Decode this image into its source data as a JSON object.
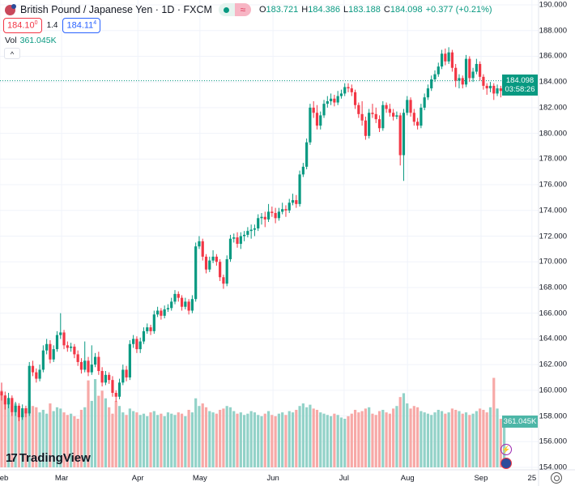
{
  "header": {
    "title": "British Pound / Japanese Yen · 1D · FXCM",
    "o_label": "O",
    "o": "183.721",
    "h_label": "H",
    "h": "184.386",
    "l_label": "L",
    "l": "183.188",
    "c_label": "C",
    "c": "184.098",
    "change": "+0.377 (+0.21%)",
    "market_status_icon": "green-dot-icon",
    "replay_icon": "approx-icon",
    "replay_symbol": "≈"
  },
  "trade": {
    "sell": "184.10",
    "sell_sup": "0",
    "spread": "1.4",
    "buy": "184.11",
    "buy_sup": "4"
  },
  "volume": {
    "label": "Vol",
    "value": "361.045K"
  },
  "collapse_symbol": "^",
  "price_tag": {
    "price": "184.098",
    "countdown": "03:58:26"
  },
  "volume_tag": "361.045K",
  "logo": {
    "mark": "17",
    "text": "TradingView"
  },
  "colors": {
    "up": "#089981",
    "down": "#f23645",
    "vol_up": "#92d2c8",
    "vol_down": "#f7a9a7",
    "grid": "#f0f3fa"
  },
  "chart_data": {
    "type": "candlestick",
    "interval": "1D",
    "ylim": [
      154,
      190
    ],
    "y_ticks": [
      "190.000",
      "188.000",
      "186.000",
      "184.000",
      "182.000",
      "180.000",
      "178.000",
      "176.000",
      "174.000",
      "172.000",
      "170.000",
      "168.000",
      "166.000",
      "164.000",
      "162.000",
      "160.000",
      "158.000",
      "156.000",
      "154.000"
    ],
    "x_ticks": [
      {
        "label": "eb",
        "index": -0.5
      },
      {
        "label": "Mar",
        "index": 17.3
      },
      {
        "label": "Apr",
        "index": 39.3
      },
      {
        "label": "May",
        "index": 57.2
      },
      {
        "label": "Jun",
        "index": 78.3
      },
      {
        "label": "Jul",
        "index": 98.8
      },
      {
        "label": "Aug",
        "index": 117.1
      },
      {
        "label": "Sep",
        "index": 138.3
      },
      {
        "label": "25",
        "index": 153
      }
    ],
    "grid": true,
    "last_price": 184.098,
    "ohlc": [
      [
        159.9,
        160.6,
        159.2,
        159.6
      ],
      [
        159.6,
        159.9,
        158.5,
        158.9
      ],
      [
        158.9,
        159.8,
        158.6,
        159.4
      ],
      [
        159.4,
        159.6,
        158.0,
        158.3
      ],
      [
        158.3,
        159.1,
        158.0,
        158.8
      ],
      [
        158.8,
        159.0,
        157.6,
        157.9
      ],
      [
        157.9,
        158.9,
        157.7,
        158.6
      ],
      [
        158.6,
        158.8,
        157.9,
        158.2
      ],
      [
        158.2,
        162.2,
        158.0,
        161.9
      ],
      [
        161.9,
        162.3,
        161.1,
        161.4
      ],
      [
        161.4,
        161.7,
        160.6,
        160.9
      ],
      [
        160.9,
        162.0,
        160.7,
        161.6
      ],
      [
        161.6,
        163.5,
        161.4,
        163.1
      ],
      [
        163.1,
        164.0,
        162.8,
        163.6
      ],
      [
        163.6,
        163.9,
        162.1,
        162.4
      ],
      [
        162.4,
        163.5,
        162.2,
        163.2
      ],
      [
        163.2,
        164.6,
        163.0,
        164.3
      ],
      [
        164.3,
        166.0,
        164.0,
        164.5
      ],
      [
        164.5,
        164.7,
        163.2,
        163.5
      ],
      [
        163.5,
        163.8,
        163.0,
        163.3
      ],
      [
        163.3,
        163.7,
        163.0,
        163.4
      ],
      [
        163.4,
        163.6,
        162.5,
        162.8
      ],
      [
        162.8,
        163.1,
        161.9,
        162.2
      ],
      [
        162.2,
        162.5,
        161.3,
        161.6
      ],
      [
        161.6,
        163.8,
        161.4,
        162.3
      ],
      [
        162.3,
        162.6,
        161.1,
        161.4
      ],
      [
        161.4,
        163.5,
        161.2,
        162.0
      ],
      [
        162.0,
        162.9,
        161.8,
        162.6
      ],
      [
        162.6,
        163.0,
        161.2,
        161.5
      ],
      [
        161.5,
        161.8,
        160.3,
        160.6
      ],
      [
        160.6,
        161.5,
        160.4,
        161.2
      ],
      [
        161.2,
        161.4,
        160.5,
        160.8
      ],
      [
        160.8,
        161.1,
        159.5,
        159.8
      ],
      [
        159.8,
        160.0,
        159.1,
        159.5
      ],
      [
        159.5,
        160.9,
        159.3,
        160.6
      ],
      [
        160.6,
        162.0,
        160.4,
        161.6
      ],
      [
        161.6,
        161.9,
        160.7,
        161.0
      ],
      [
        161.0,
        163.9,
        160.8,
        163.6
      ],
      [
        163.6,
        164.3,
        163.3,
        164.0
      ],
      [
        164.0,
        164.2,
        162.9,
        163.2
      ],
      [
        163.2,
        164.1,
        162.9,
        163.8
      ],
      [
        163.8,
        164.9,
        163.6,
        164.6
      ],
      [
        164.6,
        165.2,
        164.4,
        164.9
      ],
      [
        164.9,
        165.1,
        164.3,
        164.6
      ],
      [
        164.6,
        166.2,
        164.4,
        165.9
      ],
      [
        165.9,
        166.5,
        165.7,
        166.2
      ],
      [
        166.2,
        166.4,
        165.5,
        165.8
      ],
      [
        165.8,
        166.6,
        165.6,
        166.3
      ],
      [
        166.3,
        166.7,
        166.1,
        166.4
      ],
      [
        166.4,
        167.2,
        166.2,
        166.9
      ],
      [
        166.9,
        167.8,
        166.7,
        167.5
      ],
      [
        167.5,
        167.7,
        166.9,
        167.2
      ],
      [
        167.2,
        167.4,
        166.2,
        166.5
      ],
      [
        166.5,
        167.2,
        166.3,
        166.9
      ],
      [
        166.9,
        167.1,
        165.9,
        166.2
      ],
      [
        166.2,
        167.4,
        166.0,
        167.1
      ],
      [
        167.1,
        171.5,
        166.9,
        171.2
      ],
      [
        171.2,
        172.0,
        171.0,
        171.6
      ],
      [
        171.6,
        171.8,
        170.1,
        170.4
      ],
      [
        170.4,
        170.6,
        169.1,
        169.4
      ],
      [
        169.4,
        170.4,
        169.2,
        170.1
      ],
      [
        170.1,
        170.9,
        169.9,
        170.4
      ],
      [
        170.4,
        170.6,
        169.7,
        170.0
      ],
      [
        170.0,
        170.2,
        168.5,
        168.8
      ],
      [
        168.8,
        169.0,
        167.9,
        168.3
      ],
      [
        168.3,
        170.5,
        168.1,
        170.2
      ],
      [
        170.2,
        172.1,
        170.0,
        171.8
      ],
      [
        171.8,
        172.2,
        171.5,
        171.9
      ],
      [
        171.9,
        172.3,
        171.1,
        171.4
      ],
      [
        171.4,
        172.3,
        171.0,
        172.0
      ],
      [
        172.0,
        172.4,
        171.6,
        172.1
      ],
      [
        172.1,
        172.7,
        171.9,
        172.4
      ],
      [
        172.4,
        172.9,
        171.8,
        172.5
      ],
      [
        172.5,
        172.9,
        172.0,
        172.6
      ],
      [
        172.6,
        173.7,
        172.4,
        173.4
      ],
      [
        173.4,
        173.8,
        172.9,
        173.5
      ],
      [
        173.5,
        173.9,
        172.7,
        173.3
      ],
      [
        173.3,
        174.5,
        173.1,
        173.9
      ],
      [
        173.9,
        174.3,
        173.5,
        173.8
      ],
      [
        173.8,
        174.2,
        173.0,
        173.4
      ],
      [
        173.4,
        174.2,
        173.2,
        173.9
      ],
      [
        173.9,
        174.6,
        173.7,
        174.1
      ],
      [
        174.1,
        174.4,
        173.5,
        174.0
      ],
      [
        174.0,
        174.9,
        173.8,
        174.6
      ],
      [
        174.6,
        175.3,
        174.4,
        174.8
      ],
      [
        174.8,
        175.2,
        174.2,
        174.5
      ],
      [
        174.5,
        177.1,
        174.3,
        176.8
      ],
      [
        176.8,
        177.7,
        176.6,
        177.4
      ],
      [
        177.4,
        179.6,
        177.2,
        179.3
      ],
      [
        179.3,
        182.3,
        179.1,
        182.0
      ],
      [
        182.0,
        182.5,
        181.2,
        181.6
      ],
      [
        181.6,
        182.2,
        180.3,
        180.6
      ],
      [
        180.6,
        181.7,
        180.3,
        181.4
      ],
      [
        181.4,
        182.6,
        181.2,
        182.3
      ],
      [
        182.3,
        182.9,
        182.0,
        182.5
      ],
      [
        182.5,
        183.1,
        182.2,
        182.7
      ],
      [
        182.7,
        183.0,
        182.1,
        182.4
      ],
      [
        182.4,
        183.3,
        182.2,
        182.9
      ],
      [
        182.9,
        183.4,
        182.7,
        183.1
      ],
      [
        183.1,
        183.9,
        182.9,
        183.6
      ],
      [
        183.6,
        183.9,
        183.2,
        183.5
      ],
      [
        183.5,
        183.8,
        182.9,
        183.2
      ],
      [
        183.2,
        183.4,
        181.9,
        182.2
      ],
      [
        182.2,
        182.4,
        181.2,
        181.5
      ],
      [
        181.5,
        182.5,
        180.6,
        181.0
      ],
      [
        181.0,
        181.3,
        179.5,
        179.8
      ],
      [
        179.8,
        181.9,
        179.6,
        181.6
      ],
      [
        181.6,
        182.3,
        181.2,
        181.5
      ],
      [
        181.5,
        182.0,
        180.8,
        181.1
      ],
      [
        181.1,
        181.4,
        180.1,
        180.4
      ],
      [
        180.4,
        182.5,
        180.2,
        182.2
      ],
      [
        182.2,
        182.4,
        181.6,
        181.9
      ],
      [
        181.9,
        182.3,
        181.3,
        181.6
      ],
      [
        181.6,
        181.9,
        181.0,
        181.3
      ],
      [
        181.3,
        181.7,
        181.1,
        181.4
      ],
      [
        181.4,
        181.6,
        177.5,
        178.3
      ],
      [
        178.3,
        181.9,
        176.3,
        181.6
      ],
      [
        181.6,
        182.9,
        181.4,
        182.6
      ],
      [
        182.6,
        182.8,
        181.3,
        181.6
      ],
      [
        181.6,
        181.9,
        180.6,
        180.9
      ],
      [
        180.9,
        181.2,
        180.3,
        180.6
      ],
      [
        180.6,
        182.3,
        180.4,
        182.0
      ],
      [
        182.0,
        183.1,
        181.8,
        182.8
      ],
      [
        182.8,
        183.8,
        182.6,
        183.5
      ],
      [
        183.5,
        184.5,
        183.3,
        184.2
      ],
      [
        184.2,
        184.9,
        184.0,
        184.6
      ],
      [
        184.6,
        185.5,
        184.4,
        185.2
      ],
      [
        185.2,
        186.5,
        185.0,
        186.2
      ],
      [
        186.2,
        186.6,
        185.3,
        185.6
      ],
      [
        185.6,
        186.7,
        185.4,
        186.3
      ],
      [
        186.3,
        186.5,
        184.8,
        185.1
      ],
      [
        185.1,
        185.4,
        183.6,
        184.1
      ],
      [
        184.1,
        184.6,
        183.5,
        184.3
      ],
      [
        184.3,
        184.5,
        183.5,
        183.8
      ],
      [
        183.8,
        186.1,
        183.6,
        185.8
      ],
      [
        185.8,
        186.0,
        184.0,
        184.3
      ],
      [
        184.3,
        185.1,
        184.0,
        184.8
      ],
      [
        184.8,
        185.8,
        184.6,
        185.4
      ],
      [
        185.4,
        185.6,
        184.1,
        184.4
      ],
      [
        184.4,
        184.6,
        183.4,
        183.7
      ],
      [
        183.7,
        183.9,
        183.0,
        183.5
      ],
      [
        183.5,
        184.0,
        183.2,
        183.7
      ],
      [
        183.7,
        183.9,
        182.6,
        183.1
      ],
      [
        183.1,
        183.8,
        182.9,
        183.5
      ],
      [
        183.5,
        183.7,
        182.8,
        183.3
      ],
      [
        183.721,
        184.386,
        183.188,
        184.098
      ]
    ],
    "volume_k": [
      600,
      560,
      520,
      480,
      500,
      470,
      440,
      460,
      520,
      480,
      470,
      430,
      450,
      420,
      500,
      440,
      470,
      460,
      430,
      410,
      420,
      400,
      380,
      450,
      470,
      680,
      520,
      690,
      560,
      600,
      540,
      470,
      420,
      520,
      480,
      430,
      410,
      460,
      440,
      430,
      410,
      420,
      400,
      430,
      440,
      410,
      420,
      400,
      430,
      420,
      410,
      430,
      420,
      400,
      450,
      430,
      540,
      480,
      500,
      470,
      440,
      430,
      420,
      450,
      460,
      480,
      470,
      440,
      420,
      430,
      410,
      420,
      440,
      430,
      410,
      400,
      420,
      440,
      410,
      400,
      420,
      430,
      410,
      440,
      430,
      450,
      480,
      500,
      470,
      490,
      460,
      450,
      430,
      420,
      410,
      400,
      420,
      410,
      390,
      380,
      400,
      420,
      450,
      430,
      440,
      460,
      470,
      420,
      410,
      440,
      450,
      430,
      420,
      460,
      480,
      550,
      580,
      500,
      460,
      480,
      470,
      440,
      430,
      420,
      410,
      430,
      450,
      440,
      420,
      430,
      460,
      450,
      440,
      420,
      430,
      410,
      420,
      440,
      460,
      450,
      430,
      470,
      700,
      460,
      380,
      361.045
    ]
  }
}
